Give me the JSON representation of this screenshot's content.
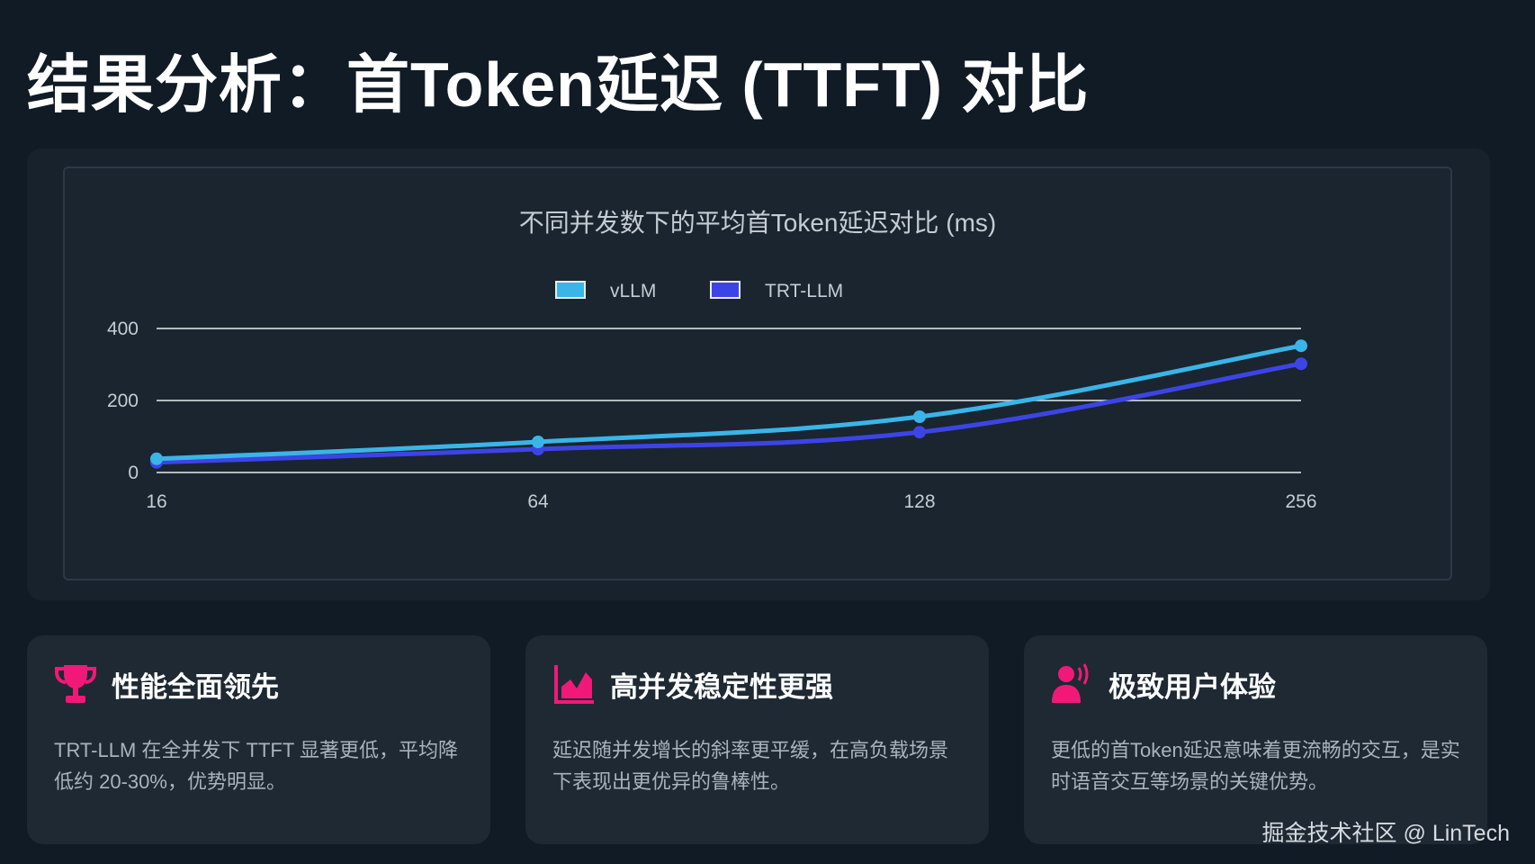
{
  "page": {
    "title": "结果分析：首Token延迟 (TTFT) 对比",
    "watermark": "掘金技术社区 @ LinTech"
  },
  "colors": {
    "vllm": "#3ab5e8",
    "trt": "#3d44e6",
    "accent": "#f0197a",
    "grid": "#e8ecef",
    "text": "#c5ccd3"
  },
  "chart_data": {
    "type": "line",
    "title": "不同并发数下的平均首Token延迟对比 (ms)",
    "categories": [
      "16",
      "64",
      "128",
      "256"
    ],
    "series": [
      {
        "name": "vLLM",
        "values": [
          38,
          85,
          155,
          352
        ]
      },
      {
        "name": "TRT-LLM",
        "values": [
          28,
          65,
          112,
          302
        ]
      }
    ],
    "xlabel": "",
    "ylabel": "",
    "ylim": [
      0,
      400
    ],
    "yticks": [
      "0",
      "200",
      "400"
    ],
    "grid": true,
    "legend": "top-center"
  },
  "cards": [
    {
      "icon": "trophy-icon",
      "title": "性能全面领先",
      "text": "TRT-LLM 在全并发下 TTFT 显著更低，平均降低约 20-30%，优势明显。"
    },
    {
      "icon": "area-chart-icon",
      "title": "高并发稳定性更强",
      "text": "延迟随并发增长的斜率更平缓，在高负载场景下表现出更优异的鲁棒性。"
    },
    {
      "icon": "user-speaking-icon",
      "title": "极致用户体验",
      "text": "更低的首Token延迟意味着更流畅的交互，是实时语音交互等场景的关键优势。"
    }
  ]
}
